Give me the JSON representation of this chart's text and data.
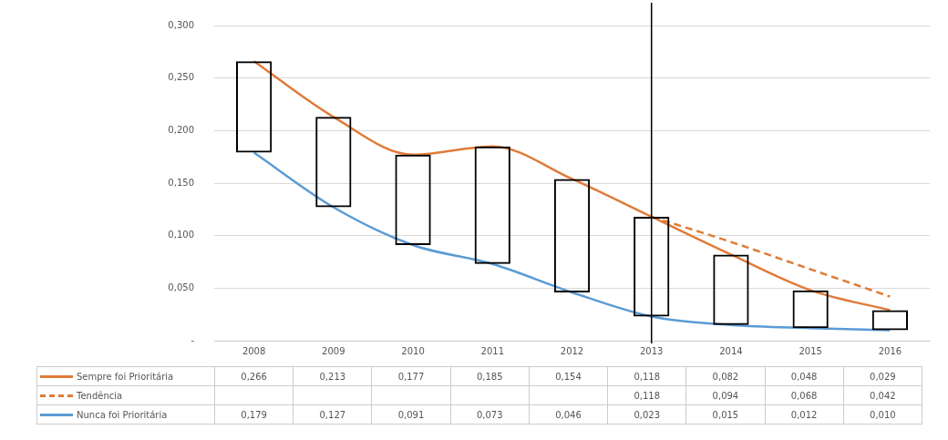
{
  "chart_data": {
    "type": "line",
    "categories": [
      "2008",
      "2009",
      "2010",
      "2011",
      "2012",
      "2013",
      "2014",
      "2015",
      "2016"
    ],
    "series": [
      {
        "type": "bar",
        "color": "#000000",
        "base": [
          0.179,
          0.127,
          0.091,
          0.073,
          0.046,
          0.023,
          0.015,
          0.012,
          0.01
        ],
        "values": [
          0.087,
          0.086,
          0.086,
          0.112,
          0.108,
          0.095,
          0.067,
          0.036,
          0.019
        ]
      },
      {
        "name": "Sempre foi Prioritária",
        "color": "#e07b39",
        "line_style": "solid",
        "values": [
          0.266,
          0.213,
          0.177,
          0.185,
          0.154,
          0.118,
          0.082,
          0.048,
          0.029
        ],
        "value_labels": [
          "0,266",
          "0,213",
          "0,177",
          "0,185",
          "0,154",
          "0,118",
          "0,082",
          "0,048",
          "0,029"
        ]
      },
      {
        "name": "Tendência",
        "color": "#e07b39",
        "line_style": "dashed",
        "values": [
          null,
          null,
          null,
          null,
          null,
          0.118,
          0.094,
          0.068,
          0.042
        ],
        "value_labels": [
          null,
          null,
          null,
          null,
          null,
          "0,118",
          "0,094",
          "0,068",
          "0,042"
        ]
      },
      {
        "name": "Nunca foi Prioritária",
        "color": "#5b9bd5",
        "line_style": "solid",
        "values": [
          0.179,
          0.127,
          0.091,
          0.073,
          0.046,
          0.023,
          0.015,
          0.012,
          0.01
        ],
        "value_labels": [
          "0,179",
          "0,127",
          "0,091",
          "0,073",
          "0,046",
          "0,023",
          "0,015",
          "0,012",
          "0,010"
        ]
      }
    ],
    "ylim": [
      0,
      0.3
    ],
    "yticks": [
      {
        "value": 0,
        "label": "-"
      },
      {
        "value": 0.05,
        "label": "0,050"
      },
      {
        "value": 0.1,
        "label": "0,100"
      },
      {
        "value": 0.15,
        "label": "0,150"
      },
      {
        "value": 0.2,
        "label": "0,200"
      },
      {
        "value": 0.25,
        "label": "0,250"
      },
      {
        "value": 0.3,
        "label": "0,300"
      }
    ],
    "grid": "y",
    "legend": "bottom",
    "marker": "none",
    "ref_lines": [
      {
        "axis": "x",
        "value": "2013",
        "color": "#000000"
      }
    ]
  }
}
